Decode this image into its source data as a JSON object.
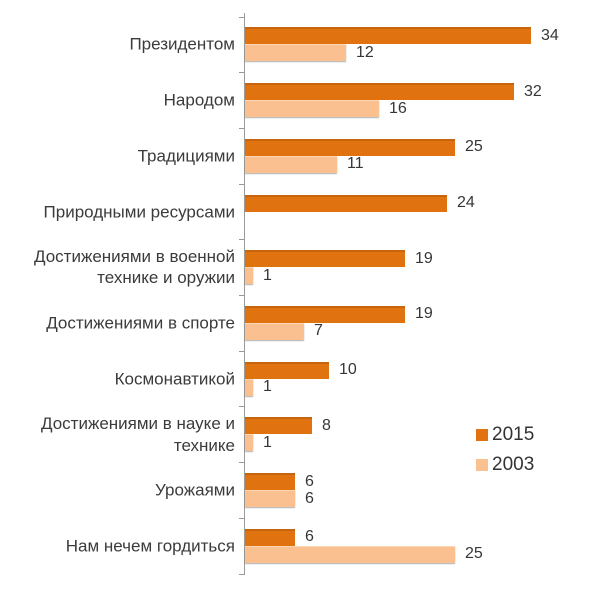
{
  "chart_data": {
    "type": "bar",
    "orientation": "horizontal",
    "title": "",
    "xlabel": "",
    "ylabel": "",
    "xlim": [
      0,
      36
    ],
    "grid": false,
    "legend_position": "right-bottom",
    "value_labels": true,
    "categories": [
      "Президентом",
      "Народом",
      "Традициями",
      "Природными ресурсами",
      "Достижениями в военной технике и оружии",
      "Достижениями в спорте",
      "Космонавтикой",
      "Достижениями в науке и технике",
      "Урожаями",
      "Нам нечем гордиться"
    ],
    "display_labels": [
      "Президентом",
      "Народом",
      "Традициями",
      "Природными ресурсами",
      "Достижениями в военной\nтехнике и оружии",
      "Достижениями в спорте",
      "Космонавтикой",
      "Достижениями в науке и\nтехнике",
      "Урожаями",
      "Нам нечем гордиться"
    ],
    "series": [
      {
        "name": "2015",
        "color": "#E0730F",
        "values": [
          34,
          32,
          25,
          24,
          19,
          19,
          10,
          8,
          6,
          6
        ]
      },
      {
        "name": "2003",
        "color": "#FAC090",
        "values": [
          12,
          16,
          11,
          null,
          1,
          7,
          1,
          1,
          6,
          25
        ]
      }
    ]
  },
  "legend": {
    "items": [
      {
        "label": "2015",
        "color": "#E0730F"
      },
      {
        "label": "2003",
        "color": "#FAC090"
      }
    ]
  },
  "colors": {
    "axis": "#9a9a9a",
    "label_text": "#3b3b3b",
    "value_text": "#363636",
    "background": "#ffffff"
  }
}
